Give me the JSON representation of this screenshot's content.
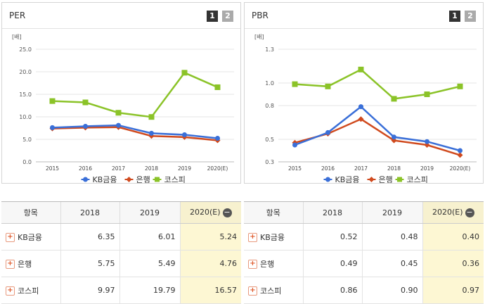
{
  "chart_data": [
    {
      "type": "line",
      "title": "PER",
      "unit": "[배]",
      "x": [
        "2015",
        "2016",
        "2017",
        "2018",
        "2019",
        "2020(E)"
      ],
      "ylim": [
        0,
        25
      ],
      "yticks": [
        "0.0",
        "5.0",
        "10.0",
        "15.0",
        "20.0",
        "25.0"
      ],
      "series": [
        {
          "name": "KB금융",
          "color": "#3a6fd8",
          "marker": "circle",
          "values": [
            7.6,
            7.9,
            8.1,
            6.35,
            6.01,
            5.24
          ]
        },
        {
          "name": "은행",
          "color": "#d04a1e",
          "marker": "diamond",
          "values": [
            7.4,
            7.6,
            7.7,
            5.75,
            5.49,
            4.76
          ]
        },
        {
          "name": "코스피",
          "color": "#8bc328",
          "marker": "square",
          "values": [
            13.5,
            13.2,
            10.9,
            9.97,
            19.79,
            16.57
          ]
        }
      ],
      "pages": [
        "1",
        "2"
      ]
    },
    {
      "type": "line",
      "title": "PBR",
      "unit": "[배]",
      "x": [
        "2015",
        "2016",
        "2017",
        "2018",
        "2019",
        "2020(E)"
      ],
      "ylim": [
        0.3,
        1.3
      ],
      "yticks": [
        "0.3",
        "0.5",
        "0.8",
        "1.0",
        "1.3"
      ],
      "series": [
        {
          "name": "KB금융",
          "color": "#3a6fd8",
          "marker": "circle",
          "values": [
            0.45,
            0.56,
            0.79,
            0.52,
            0.48,
            0.4
          ]
        },
        {
          "name": "은행",
          "color": "#d04a1e",
          "marker": "diamond",
          "values": [
            0.47,
            0.55,
            0.68,
            0.49,
            0.45,
            0.36
          ]
        },
        {
          "name": "코스피",
          "color": "#8bc328",
          "marker": "square",
          "values": [
            0.99,
            0.97,
            1.12,
            0.86,
            0.9,
            0.97
          ]
        }
      ],
      "pages": [
        "1",
        "2"
      ]
    }
  ],
  "tables": [
    {
      "headers": [
        "항목",
        "2018",
        "2019",
        "2020(E)"
      ],
      "rows": [
        {
          "label": "KB금융",
          "values": [
            "6.35",
            "6.01",
            "5.24"
          ]
        },
        {
          "label": "은행",
          "values": [
            "5.75",
            "5.49",
            "4.76"
          ]
        },
        {
          "label": "코스피",
          "values": [
            "9.97",
            "19.79",
            "16.57"
          ]
        }
      ]
    },
    {
      "headers": [
        "항목",
        "2018",
        "2019",
        "2020(E)"
      ],
      "rows": [
        {
          "label": "KB금융",
          "values": [
            "0.52",
            "0.48",
            "0.40"
          ]
        },
        {
          "label": "은행",
          "values": [
            "0.49",
            "0.45",
            "0.36"
          ]
        },
        {
          "label": "코스피",
          "values": [
            "0.86",
            "0.90",
            "0.97"
          ]
        }
      ]
    }
  ],
  "icons": {
    "expand": "plus-icon",
    "collapse": "minus-icon"
  }
}
